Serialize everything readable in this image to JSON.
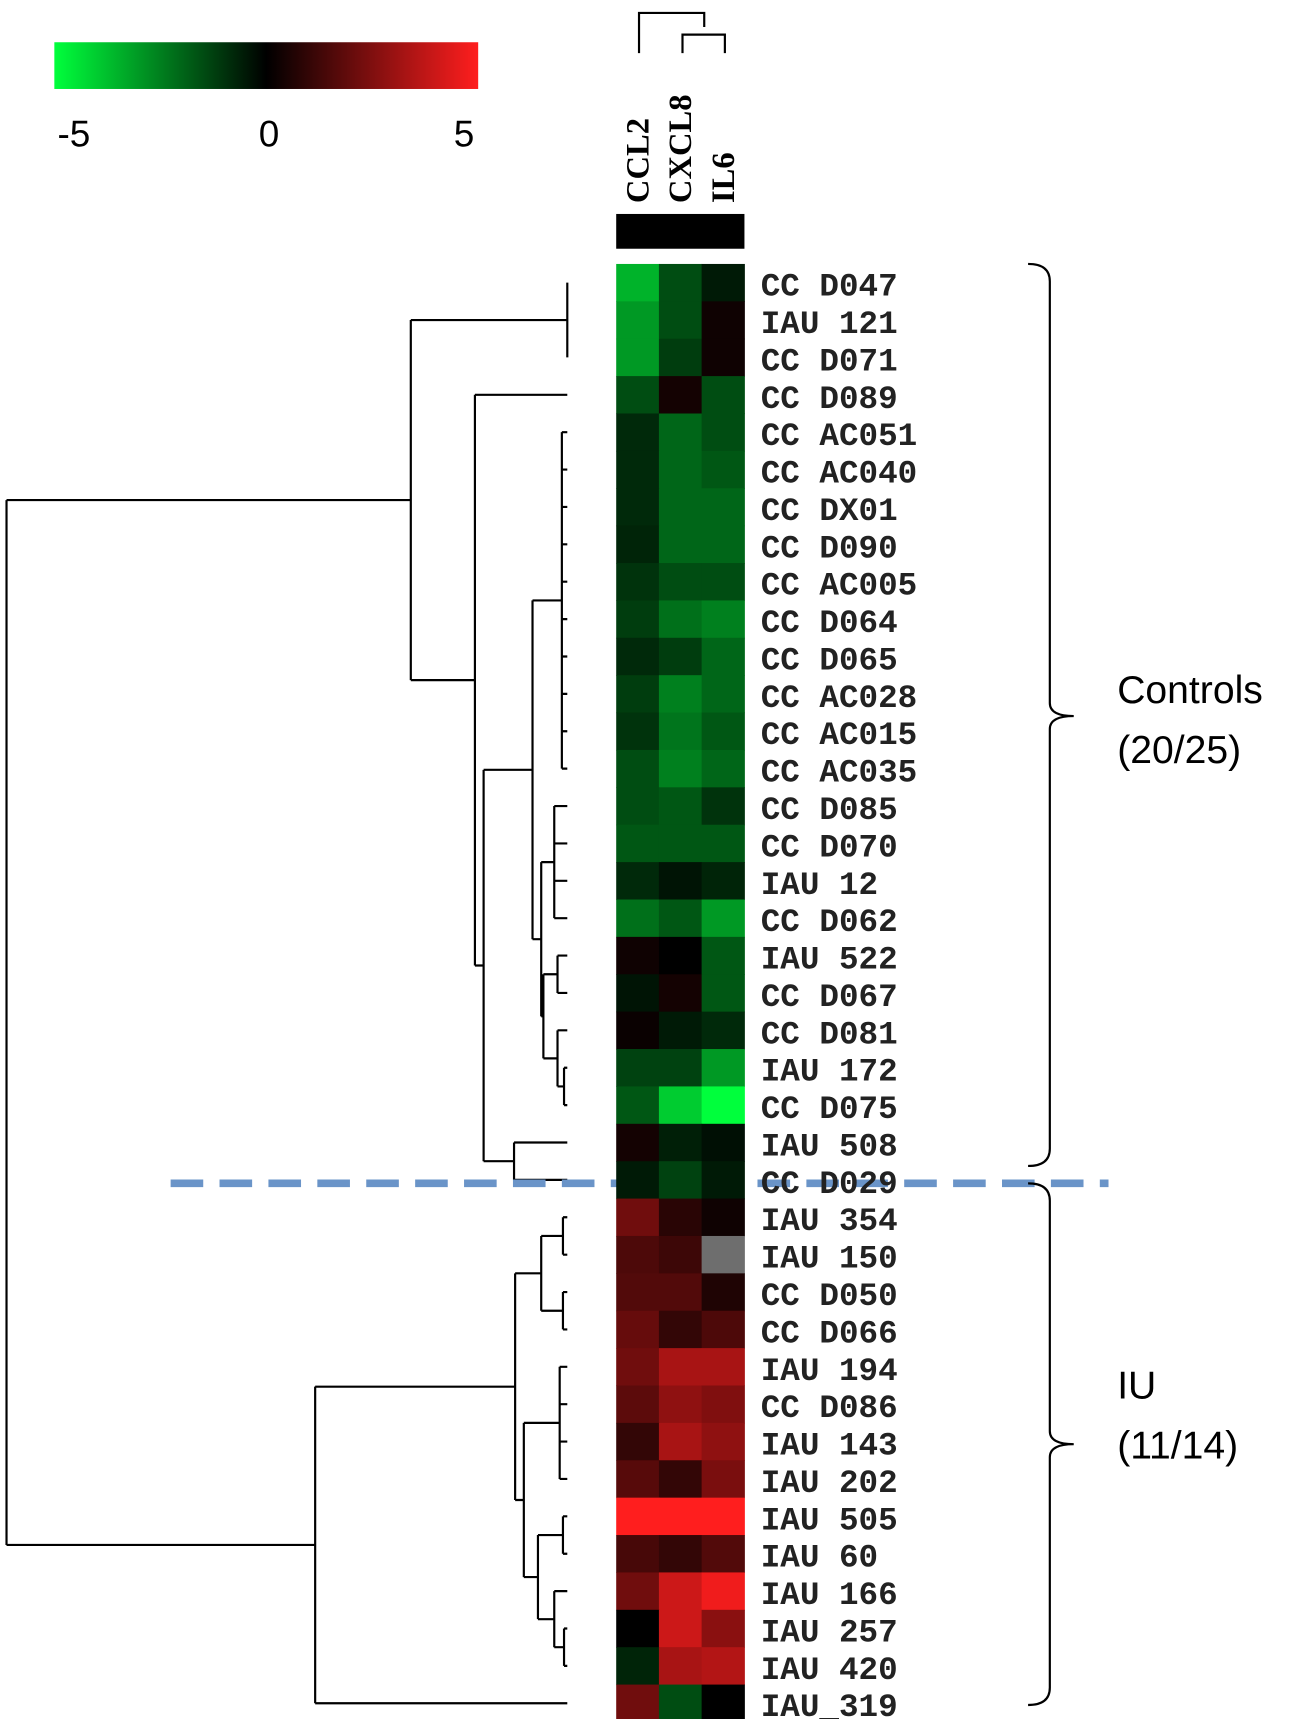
{
  "chart_data": {
    "type": "heatmap",
    "columns": [
      "CCL2",
      "CXCL8",
      "IL6"
    ],
    "rows": [
      "CC D047",
      "IAU 121",
      "CC D071",
      "CC D089",
      "CC AC051",
      "CC AC040",
      "CC DX01",
      "CC D090",
      "CC AC005",
      "CC D064",
      "CC D065",
      "CC AC028",
      "CC AC015",
      "CC AC035",
      "CC D085",
      "CC D070",
      "IAU 12",
      "CC D062",
      "IAU 522",
      "CC D067",
      "CC D081",
      "IAU 172",
      "CC D075",
      "IAU 508",
      "CC D029",
      "IAU 354",
      "IAU 150",
      "CC D050",
      "CC D066",
      "IAU 194",
      "CC D086",
      "IAU 143",
      "IAU 202",
      "IAU 505",
      "IAU 60",
      "IAU 166",
      "IAU 257",
      "IAU 420",
      "IAU_319"
    ],
    "values": [
      [
        -3.5,
        -1.5,
        -0.5
      ],
      [
        -3,
        -1.5,
        0.3
      ],
      [
        -3,
        -1.2,
        0.3
      ],
      [
        -1.5,
        0.4,
        -1.5
      ],
      [
        -0.8,
        -2,
        -1.5
      ],
      [
        -0.8,
        -2,
        -1.7
      ],
      [
        -0.8,
        -2,
        -2
      ],
      [
        -0.7,
        -2,
        -2
      ],
      [
        -1,
        -1.5,
        -1.5
      ],
      [
        -1.2,
        -2.2,
        -2.5
      ],
      [
        -0.8,
        -1.2,
        -2
      ],
      [
        -1.2,
        -2.5,
        -2
      ],
      [
        -1,
        -2.3,
        -1.7
      ],
      [
        -1.5,
        -2.5,
        -2
      ],
      [
        -1.5,
        -1.7,
        -1
      ],
      [
        -1.7,
        -1.7,
        -1.7
      ],
      [
        -0.8,
        -0.4,
        -0.7
      ],
      [
        -2.2,
        -1.7,
        -3
      ],
      [
        0.3,
        0,
        -1.7
      ],
      [
        -0.4,
        0.4,
        -1.7
      ],
      [
        0.2,
        -0.5,
        -0.8
      ],
      [
        -1.3,
        -1.3,
        -3
      ],
      [
        -1.7,
        -4,
        -5
      ],
      [
        0.4,
        -0.6,
        -0.3
      ],
      [
        -0.5,
        -1.3,
        -0.5
      ],
      [
        2.2,
        0.8,
        0.3
      ],
      [
        1.5,
        1.2,
        null
      ],
      [
        1.6,
        1.6,
        0.6
      ],
      [
        2,
        1,
        1.5
      ],
      [
        2.2,
        3.3,
        3.3
      ],
      [
        1.8,
        2.8,
        2.5
      ],
      [
        1,
        3.3,
        2.8
      ],
      [
        1.7,
        1,
        2.4
      ],
      [
        5,
        5,
        5
      ],
      [
        1.4,
        1,
        1.6
      ],
      [
        2.2,
        4,
        4.7
      ],
      [
        0,
        4,
        2.7
      ],
      [
        -0.7,
        3.3,
        3.5
      ],
      [
        2.2,
        -1.5,
        0
      ]
    ],
    "colorbar": {
      "lim": [
        -5,
        5
      ],
      "ticks": [
        -5,
        0,
        5
      ]
    },
    "low_color": "#00ff3c",
    "mid_color": "#000000",
    "high_color": "#ff1e1e",
    "missing_color": "#6e6e6e",
    "groups": [
      {
        "lines": [
          "Controls",
          "(20/25)"
        ]
      },
      {
        "lines": [
          "IU",
          "(11/14)"
        ]
      }
    ]
  }
}
